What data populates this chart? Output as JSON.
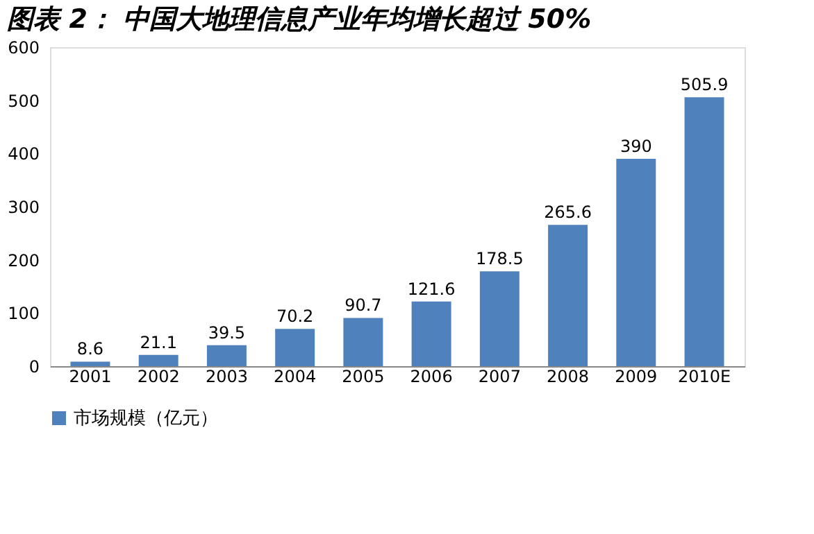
{
  "chart_data": {
    "type": "bar",
    "title": "图表 2：  中国大地理信息产业年均增长超过 50%",
    "categories": [
      "2001",
      "2002",
      "2003",
      "2004",
      "2005",
      "2006",
      "2007",
      "2008",
      "2009",
      "2010E"
    ],
    "series": [
      {
        "name": "市场规模（亿元）",
        "color": "#4f81bd",
        "values": [
          8.6,
          21.1,
          39.5,
          70.2,
          90.7,
          121.6,
          178.5,
          265.6,
          390,
          505.9
        ]
      }
    ],
    "ylim": [
      0,
      600
    ],
    "yticks": [
      0,
      100,
      200,
      300,
      400,
      500,
      600
    ],
    "grid": false,
    "legend": "bottom",
    "data_labels": true
  }
}
